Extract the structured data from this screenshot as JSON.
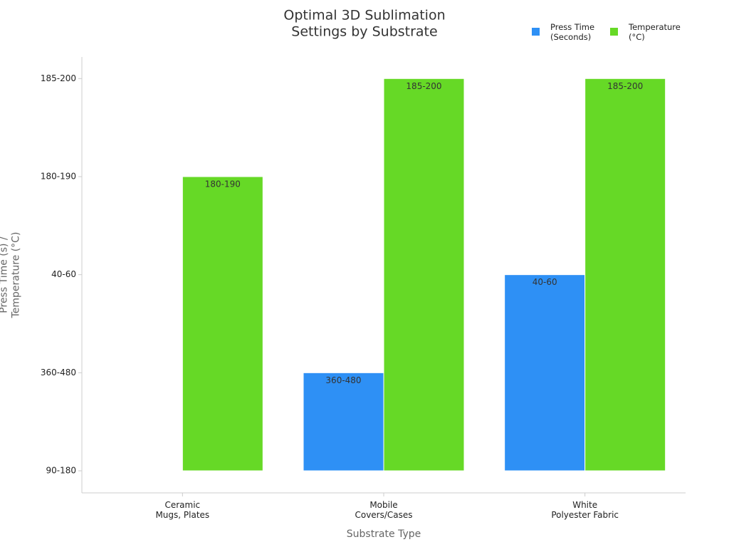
{
  "chart_data": {
    "type": "bar",
    "title": "Optimal 3D Sublimation\nSettings by Substrate",
    "x_label": "Substrate Type",
    "y_label": "Press Time (s) /\nTemperature (°C)",
    "categories": [
      "Ceramic\nMugs, Plates",
      "Mobile\nCovers/Cases",
      "White\nPolyester Fabric"
    ],
    "series": [
      {
        "name": "Press Time\n(Seconds)",
        "color": "#2e90f5",
        "values": [
          0,
          1,
          2
        ],
        "value_labels": [
          null,
          "360-480",
          "40-60"
        ]
      },
      {
        "name": "Temperature\n(°C)",
        "color": "#66d926",
        "values": [
          3,
          4,
          4
        ],
        "value_labels": [
          "180-190",
          "185-200",
          "185-200"
        ]
      }
    ],
    "ylim": [
      -0.225,
      4.22
    ],
    "yticks": [
      {
        "value": 0,
        "label": "90-180"
      },
      {
        "value": 1,
        "label": "360-480"
      },
      {
        "value": 2,
        "label": "40-60"
      },
      {
        "value": 3,
        "label": "180-190"
      },
      {
        "value": 4,
        "label": "185-200"
      }
    ],
    "grid": false,
    "legend": "top-right"
  }
}
